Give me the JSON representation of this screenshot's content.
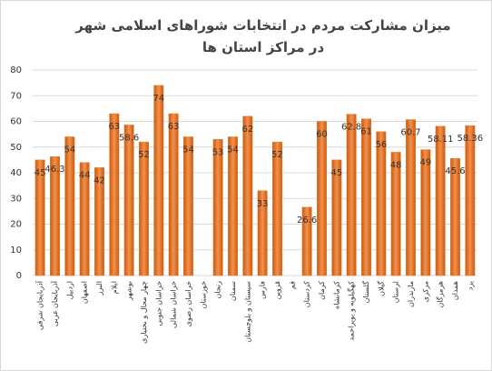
{
  "chart_data": {
    "type": "bar",
    "title": "میزان مشارکت مردم در انتخابات شوراهای اسلامی شهر در مراکز استان ها",
    "categories": [
      "آذربایجان شرقی",
      "آذربایجان غربی",
      "اردبیل",
      "اصفهان",
      "البرز",
      "ایلام",
      "بوشهر",
      "چهار محال و بختیاری",
      "خراسان جنوبی",
      "خراسان شمالی",
      "خراسان رضوی",
      "خوزستان",
      "زنجان",
      "سمنان",
      "سیستان و بلوچستان",
      "فارس",
      "قزوین",
      "قم",
      "کردستان",
      "کرمان",
      "کرمانشاه",
      "کهگیلویه و بویراحمد",
      "گلستان",
      "گیلان",
      "لرستان",
      "مازندران",
      "مرکزی",
      "هرمزگان",
      "همدان",
      "یزد"
    ],
    "values": [
      45,
      46.3,
      54,
      44,
      42,
      63,
      58.6,
      52,
      74,
      63,
      54,
      null,
      53,
      54,
      62,
      33,
      52,
      null,
      26.6,
      60,
      45,
      62.8,
      61,
      56,
      48,
      60.7,
      49,
      58.11,
      45.6,
      58.36
    ],
    "color": "#ed7d31",
    "ylim": [
      0,
      80
    ],
    "yticks": [
      0,
      10,
      20,
      30,
      40,
      50,
      60,
      70,
      80
    ],
    "grid": true
  }
}
